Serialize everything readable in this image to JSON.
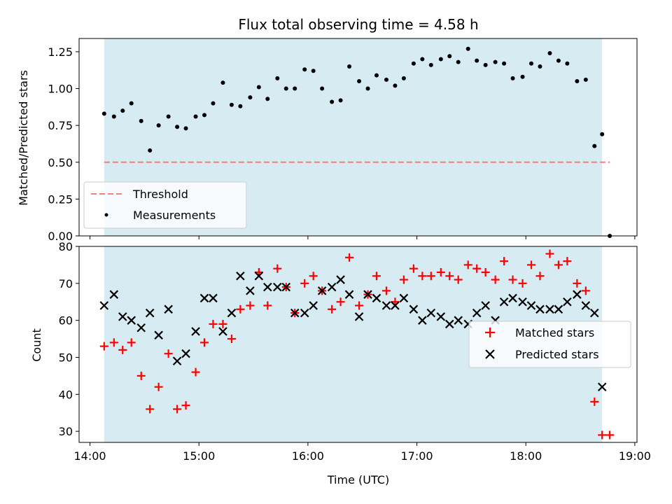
{
  "chart_data": [
    {
      "type": "scatter",
      "title": "Flux total observing time = 4.58 h",
      "xlabel": "",
      "ylabel": "Matched/Predicted stars",
      "ylim": [
        0,
        1.34
      ],
      "yticks": [
        "0.00",
        "0.25",
        "0.50",
        "0.75",
        "1.00",
        "1.25"
      ],
      "ytick_values": [
        0,
        0.25,
        0.5,
        0.75,
        1.0,
        1.25
      ],
      "xlim_hours": [
        13.9,
        19.02
      ],
      "shaded_span_hours": [
        14.13,
        18.7
      ],
      "shade_color": "#add8e6",
      "threshold": {
        "name": "Threshold",
        "value": 0.5,
        "x_start": 14.13,
        "x_end": 18.77,
        "color": "#f08080"
      },
      "series": [
        {
          "name": "Measurements",
          "color": "#000000",
          "x": [
            14.13,
            14.22,
            14.3,
            14.38,
            14.47,
            14.55,
            14.63,
            14.72,
            14.8,
            14.88,
            14.97,
            15.05,
            15.13,
            15.22,
            15.3,
            15.38,
            15.47,
            15.55,
            15.63,
            15.72,
            15.8,
            15.88,
            15.97,
            16.05,
            16.13,
            16.22,
            16.3,
            16.38,
            16.47,
            16.55,
            16.63,
            16.72,
            16.8,
            16.88,
            16.97,
            17.05,
            17.13,
            17.22,
            17.3,
            17.38,
            17.47,
            17.55,
            17.63,
            17.72,
            17.8,
            17.88,
            17.97,
            18.05,
            18.13,
            18.22,
            18.3,
            18.38,
            18.47,
            18.55,
            18.63,
            18.7,
            18.77
          ],
          "y": [
            0.83,
            0.81,
            0.85,
            0.9,
            0.78,
            0.58,
            0.75,
            0.81,
            0.74,
            0.73,
            0.81,
            0.82,
            0.9,
            1.04,
            0.89,
            0.88,
            0.94,
            1.01,
            0.93,
            1.07,
            1.0,
            1.0,
            1.13,
            1.12,
            1.0,
            0.91,
            0.92,
            1.15,
            1.05,
            1.0,
            1.09,
            1.06,
            1.02,
            1.07,
            1.17,
            1.2,
            1.16,
            1.2,
            1.22,
            1.18,
            1.27,
            1.19,
            1.16,
            1.18,
            1.17,
            1.07,
            1.08,
            1.17,
            1.15,
            1.24,
            1.19,
            1.17,
            1.05,
            1.06,
            0.61,
            0.69,
            0.0
          ]
        }
      ],
      "legend": {
        "placement": "lower-left",
        "entries": [
          "Threshold",
          "Measurements"
        ]
      },
      "grid": false
    },
    {
      "type": "scatter",
      "title": "",
      "xlabel": "Time (UTC)",
      "ylabel": "Count",
      "ylim": [
        27,
        80
      ],
      "yticks": [
        "30",
        "40",
        "50",
        "60",
        "70",
        "80"
      ],
      "ytick_values": [
        30,
        40,
        50,
        60,
        70,
        80
      ],
      "xticks": [
        "14:00",
        "15:00",
        "16:00",
        "17:00",
        "18:00",
        "19:00"
      ],
      "xtick_values": [
        14,
        15,
        16,
        17,
        18,
        19
      ],
      "xlim_hours": [
        13.9,
        19.02
      ],
      "shaded_span_hours": [
        14.13,
        18.7
      ],
      "shade_color": "#add8e6",
      "series": [
        {
          "name": "Matched stars",
          "marker": "plus",
          "color": "#ff0000",
          "x": [
            14.13,
            14.22,
            14.3,
            14.38,
            14.47,
            14.55,
            14.63,
            14.72,
            14.8,
            14.88,
            14.97,
            15.05,
            15.13,
            15.22,
            15.3,
            15.38,
            15.47,
            15.55,
            15.63,
            15.72,
            15.8,
            15.88,
            15.97,
            16.05,
            16.13,
            16.22,
            16.3,
            16.38,
            16.47,
            16.55,
            16.63,
            16.72,
            16.8,
            16.88,
            16.97,
            17.05,
            17.13,
            17.22,
            17.3,
            17.38,
            17.47,
            17.55,
            17.63,
            17.72,
            17.8,
            17.88,
            17.97,
            18.05,
            18.13,
            18.22,
            18.3,
            18.38,
            18.47,
            18.55,
            18.63,
            18.7,
            18.77
          ],
          "y": [
            53,
            54,
            52,
            54,
            45,
            36,
            42,
            51,
            36,
            37,
            46,
            54,
            59,
            59,
            55,
            63,
            64,
            73,
            64,
            74,
            69,
            62,
            70,
            72,
            68,
            63,
            65,
            77,
            64,
            67,
            72,
            68,
            65,
            71,
            74,
            72,
            72,
            73,
            72,
            71,
            75,
            74,
            73,
            71,
            76,
            71,
            70,
            75,
            72,
            78,
            75,
            76,
            70,
            68,
            38,
            29,
            29
          ]
        },
        {
          "name": "Predicted stars",
          "marker": "x",
          "color": "#000000",
          "x": [
            14.13,
            14.22,
            14.3,
            14.38,
            14.47,
            14.55,
            14.63,
            14.72,
            14.8,
            14.88,
            14.97,
            15.05,
            15.13,
            15.22,
            15.3,
            15.38,
            15.47,
            15.55,
            15.63,
            15.72,
            15.8,
            15.88,
            15.97,
            16.05,
            16.13,
            16.22,
            16.3,
            16.38,
            16.47,
            16.55,
            16.63,
            16.72,
            16.8,
            16.88,
            16.97,
            17.05,
            17.13,
            17.22,
            17.3,
            17.38,
            17.47,
            17.55,
            17.63,
            17.72,
            17.8,
            17.88,
            17.97,
            18.05,
            18.13,
            18.22,
            18.3,
            18.38,
            18.47,
            18.55,
            18.63,
            18.7
          ],
          "y": [
            64,
            67,
            61,
            60,
            58,
            62,
            56,
            63,
            49,
            51,
            57,
            66,
            66,
            57,
            62,
            72,
            68,
            72,
            69,
            69,
            69,
            62,
            62,
            64,
            68,
            69,
            71,
            67,
            61,
            67,
            66,
            64,
            64,
            66,
            63,
            60,
            62,
            61,
            59,
            60,
            59,
            62,
            64,
            60,
            65,
            66,
            65,
            64,
            63,
            63,
            63,
            65,
            67,
            64,
            62,
            42
          ]
        }
      ],
      "legend": {
        "placement": "right",
        "entries": [
          "Matched stars",
          "Predicted stars"
        ]
      },
      "grid": false
    }
  ]
}
